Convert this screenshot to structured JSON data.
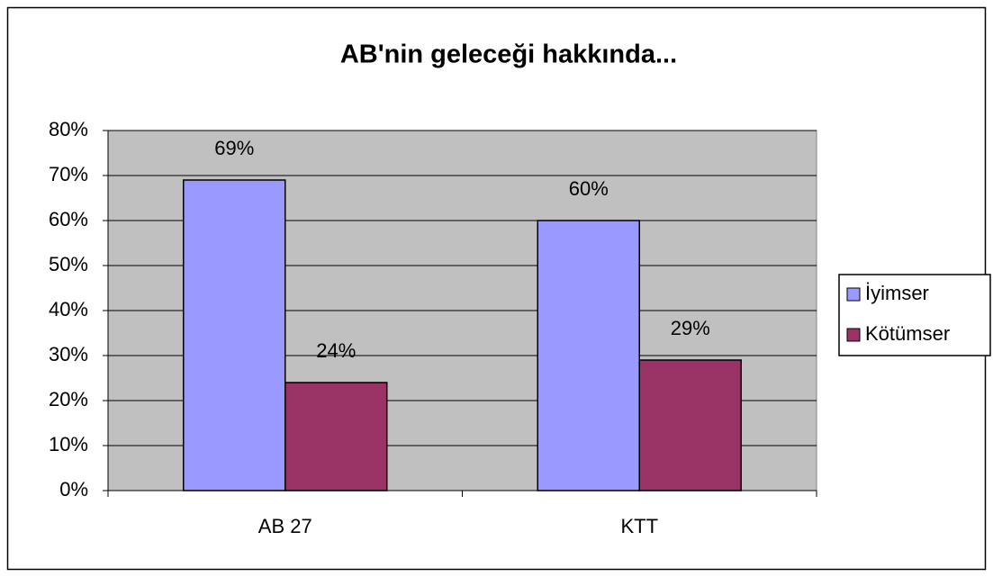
{
  "chart_data": {
    "type": "bar",
    "title": "AB'nin geleceği hakkında...",
    "categories": [
      "AB 27",
      "KTT"
    ],
    "series": [
      {
        "name": "İyimser",
        "color": "#9999ff",
        "values": [
          69,
          60
        ],
        "value_labels": [
          "69%",
          "60%"
        ]
      },
      {
        "name": "Kötümser",
        "color": "#993366",
        "values": [
          24,
          29
        ],
        "value_labels": [
          "24%",
          "29%"
        ]
      }
    ],
    "ylim": [
      0,
      80
    ],
    "yticks": [
      {
        "value": 0,
        "label": "0%"
      },
      {
        "value": 10,
        "label": "10%"
      },
      {
        "value": 20,
        "label": "20%"
      },
      {
        "value": 30,
        "label": "30%"
      },
      {
        "value": 40,
        "label": "40%"
      },
      {
        "value": 50,
        "label": "50%"
      },
      {
        "value": 60,
        "label": "60%"
      },
      {
        "value": 70,
        "label": "70%"
      },
      {
        "value": 80,
        "label": "80%"
      }
    ],
    "grid": true,
    "legend": "right"
  }
}
